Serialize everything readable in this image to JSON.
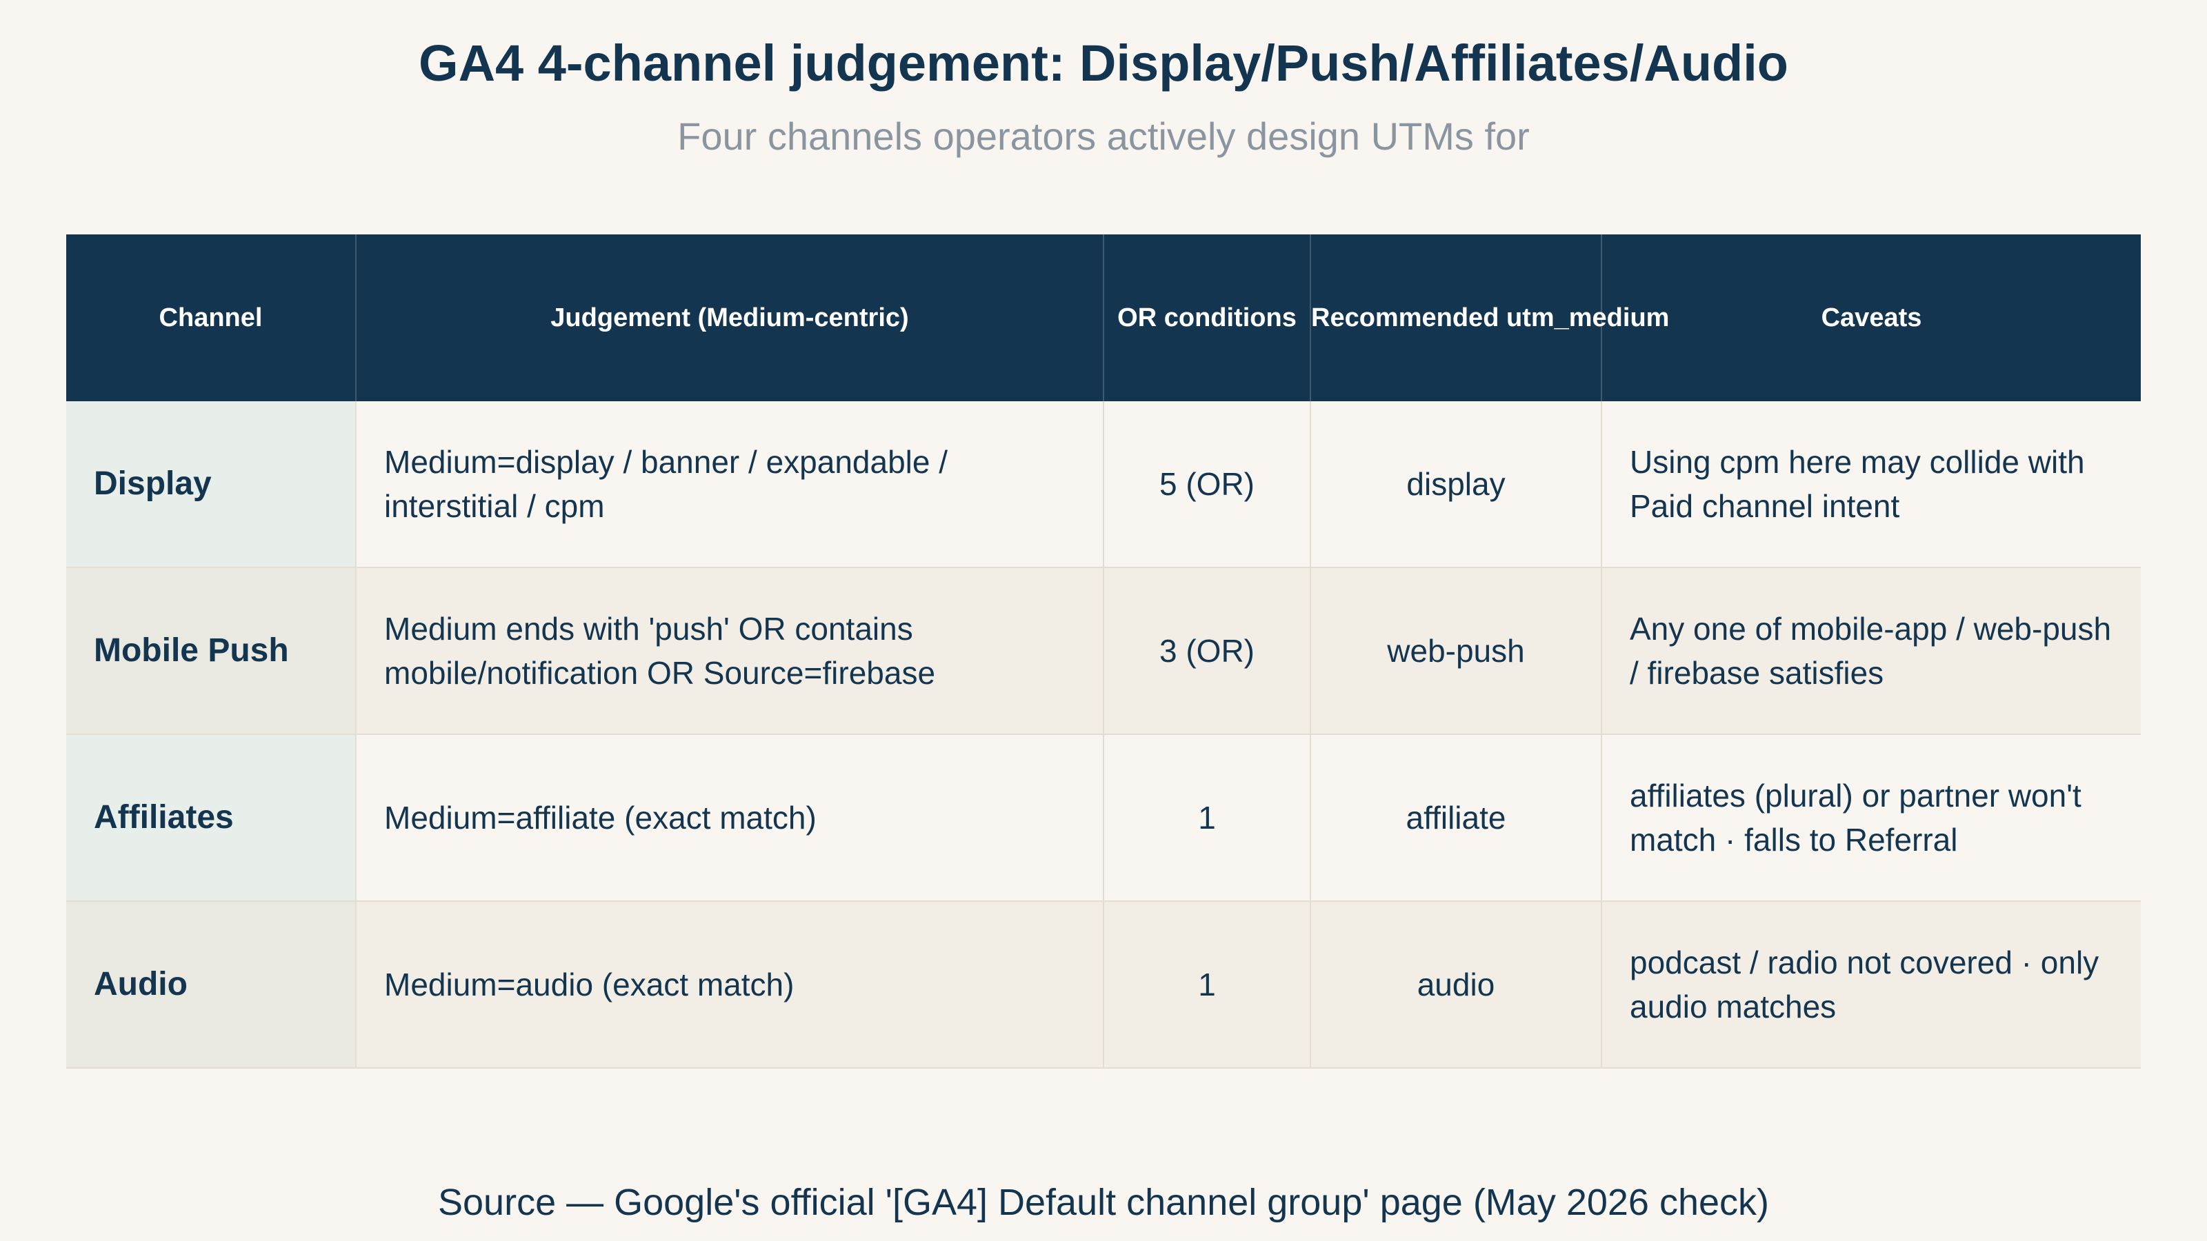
{
  "title": "GA4 4-channel judgement: Display/Push/Affiliates/Audio",
  "subtitle": "Four channels operators actively design UTMs for",
  "source": "Source — Google's official '[GA4] Default channel group' page (May 2026 check)",
  "colors": {
    "header_bg": "#13354f",
    "text": "#13354f",
    "page_bg": "#f9f6f1",
    "row_alt_bg": "#f2eee6",
    "subtitle": "#8a95a0"
  },
  "chart_data": {
    "type": "table",
    "title": "GA4 4-channel judgement: Display/Push/Affiliates/Audio",
    "subtitle": "Four channels operators actively design UTMs for",
    "columns": [
      "Channel",
      "Judgement (Medium-centric)",
      "OR conditions",
      "Recommended utm_medium",
      "Caveats"
    ],
    "rows": [
      {
        "channel": "Display",
        "judgement": "Medium=display / banner / expandable / interstitial / cpm",
        "or_conditions": "5 (OR)",
        "utm_medium": "display",
        "caveats": "Using cpm here may collide with Paid channel intent"
      },
      {
        "channel": "Mobile Push",
        "judgement": "Medium ends with 'push' OR contains mobile/notification OR Source=firebase",
        "or_conditions": "3 (OR)",
        "utm_medium": "web-push",
        "caveats": "Any one of mobile-app / web-push / firebase satisfies"
      },
      {
        "channel": "Affiliates",
        "judgement": "Medium=affiliate (exact match)",
        "or_conditions": "1",
        "utm_medium": "affiliate",
        "caveats": "affiliates (plural) or partner won't match · falls to Referral"
      },
      {
        "channel": "Audio",
        "judgement": "Medium=audio (exact match)",
        "or_conditions": "1",
        "utm_medium": "audio",
        "caveats": "podcast / radio not covered · only audio matches"
      }
    ]
  }
}
